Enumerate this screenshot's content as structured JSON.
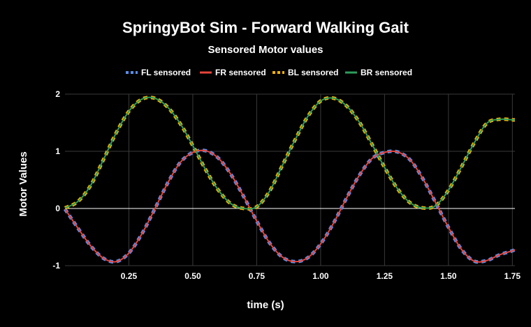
{
  "chart_data": {
    "type": "line",
    "title": "SpringyBot Sim - Forward Walking Gait",
    "subtitle": "Sensored Motor values",
    "xlabel": "time (s)",
    "ylabel": "Motor Values",
    "xlim": [
      0,
      1.76
    ],
    "ylim": [
      -1,
      2
    ],
    "xticks": [
      "0.25",
      "0.50",
      "0.75",
      "1.00",
      "1.25",
      "1.50",
      "1.75"
    ],
    "xtick_values": [
      0.25,
      0.5,
      0.75,
      1.0,
      1.25,
      1.5,
      1.75
    ],
    "yticks": [
      "-1",
      "0",
      "1",
      "2"
    ],
    "ytick_values": [
      -1,
      0,
      1,
      2
    ],
    "grid": true,
    "legend_position": "top",
    "x": [
      0.0,
      0.05,
      0.1,
      0.15,
      0.2,
      0.25,
      0.3,
      0.35,
      0.4,
      0.45,
      0.5,
      0.55,
      0.6,
      0.65,
      0.7,
      0.75,
      0.8,
      0.85,
      0.9,
      0.95,
      1.0,
      1.05,
      1.1,
      1.15,
      1.2,
      1.25,
      1.3,
      1.35,
      1.4,
      1.45,
      1.5,
      1.55,
      1.6,
      1.65,
      1.7,
      1.75,
      1.76
    ],
    "series": [
      {
        "name": "FL sensored",
        "color": "#5a8ee8",
        "dash": true,
        "values": [
          -0.01,
          -0.34,
          -0.65,
          -0.87,
          -0.93,
          -0.78,
          -0.45,
          -0.02,
          0.43,
          0.8,
          0.98,
          1.01,
          0.88,
          0.59,
          0.2,
          -0.22,
          -0.6,
          -0.85,
          -0.93,
          -0.86,
          -0.62,
          -0.26,
          0.17,
          0.57,
          0.87,
          0.98,
          0.99,
          0.85,
          0.52,
          0.1,
          -0.33,
          -0.71,
          -0.92,
          -0.91,
          -0.81,
          -0.74,
          -0.72
        ]
      },
      {
        "name": "FR sensored",
        "color": "#e8453c",
        "dash": false,
        "values": [
          -0.01,
          -0.34,
          -0.65,
          -0.87,
          -0.93,
          -0.78,
          -0.45,
          -0.02,
          0.43,
          0.8,
          0.98,
          1.01,
          0.88,
          0.59,
          0.2,
          -0.22,
          -0.6,
          -0.85,
          -0.93,
          -0.86,
          -0.62,
          -0.26,
          0.17,
          0.57,
          0.87,
          0.98,
          0.99,
          0.85,
          0.52,
          0.1,
          -0.33,
          -0.71,
          -0.92,
          -0.91,
          -0.81,
          -0.74,
          -0.72
        ]
      },
      {
        "name": "BL sensored",
        "color": "#f3b300",
        "dash": true,
        "values": [
          0.01,
          0.12,
          0.4,
          0.85,
          1.32,
          1.7,
          1.91,
          1.93,
          1.78,
          1.49,
          1.1,
          0.68,
          0.32,
          0.08,
          0.0,
          0.03,
          0.3,
          0.75,
          1.2,
          1.61,
          1.88,
          1.93,
          1.8,
          1.52,
          1.13,
          0.72,
          0.35,
          0.1,
          0.01,
          0.05,
          0.32,
          0.72,
          1.14,
          1.49,
          1.56,
          1.55,
          1.55
        ]
      },
      {
        "name": "BR sensored",
        "color": "#2e9d5b",
        "dash": false,
        "values": [
          0.01,
          0.12,
          0.4,
          0.85,
          1.32,
          1.7,
          1.91,
          1.93,
          1.78,
          1.49,
          1.1,
          0.68,
          0.32,
          0.08,
          0.0,
          0.03,
          0.3,
          0.75,
          1.2,
          1.61,
          1.88,
          1.93,
          1.8,
          1.52,
          1.13,
          0.72,
          0.35,
          0.1,
          0.01,
          0.05,
          0.32,
          0.72,
          1.14,
          1.49,
          1.56,
          1.55,
          1.55
        ]
      }
    ]
  }
}
